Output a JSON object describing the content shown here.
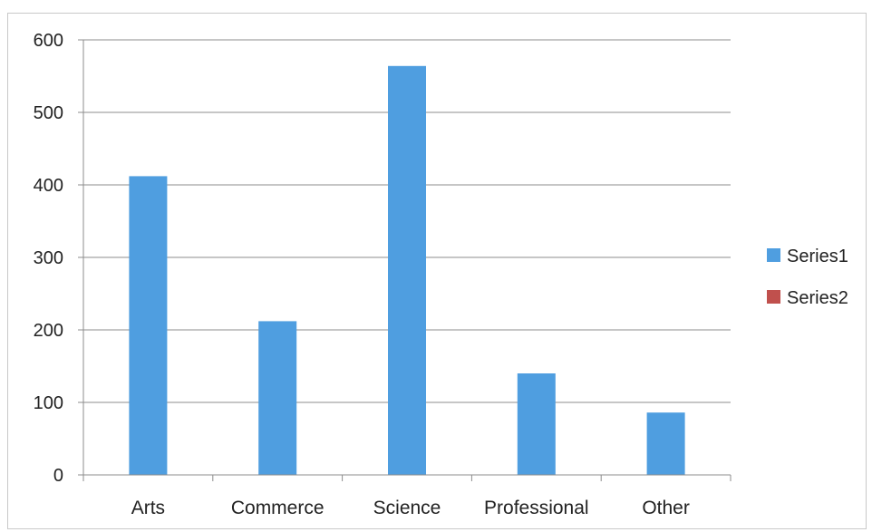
{
  "chart_data": {
    "type": "bar",
    "title": "",
    "xlabel": "",
    "ylabel": "",
    "categories": [
      "Arts",
      "Commerce",
      "Science",
      "Professional",
      "Other"
    ],
    "series": [
      {
        "name": "Series1",
        "color": "#4f9ee0",
        "values": [
          412,
          212,
          564,
          140,
          86
        ]
      },
      {
        "name": "Series2",
        "color": "#c0504d",
        "values": [
          0,
          0,
          0,
          0,
          0
        ]
      }
    ],
    "ylim": [
      0,
      600
    ],
    "yticks": [
      0,
      100,
      200,
      300,
      400,
      500,
      600
    ],
    "grid": true,
    "legend_position": "right"
  }
}
